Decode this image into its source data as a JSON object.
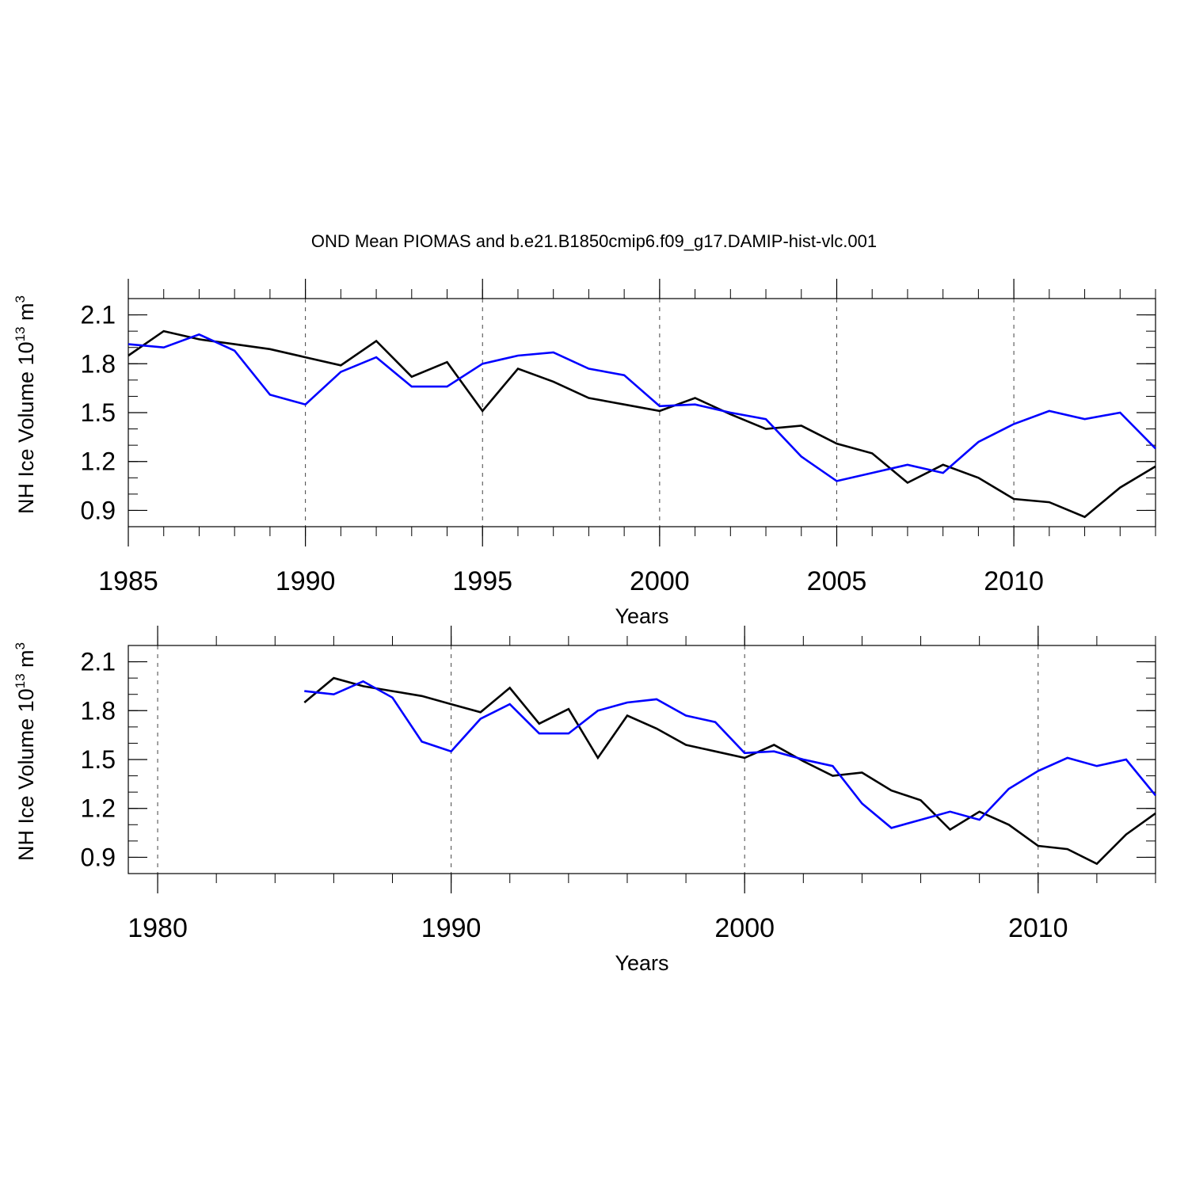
{
  "figure": {
    "title": "OND Mean PIOMAS and b.e21.B1850cmip6.f09_g17.DAMIP-hist-vlc.001"
  },
  "series_styles": {
    "piomas": {
      "name": "PIOMAS",
      "color": "#000000"
    },
    "model": {
      "name": "b.e21.B1850cmip6.f09_g17.DAMIP-hist-vlc.001",
      "color": "#0000ff"
    }
  },
  "chart_data": [
    {
      "type": "line",
      "title": "",
      "xlabel": "Years",
      "ylabel": "NH Ice Volume 10^13 m^3",
      "ylabel_parts": {
        "base": "NH Ice Volume 10",
        "exp1": "13",
        "mid": " m",
        "exp2": "3"
      },
      "xlim": [
        1985,
        2014
      ],
      "ylim": [
        0.8,
        2.2
      ],
      "xticks_major": [
        1985,
        1990,
        1995,
        2000,
        2005,
        2010
      ],
      "xtick_labels": [
        "1985",
        "1990",
        "1995",
        "2000",
        "2005",
        "2010"
      ],
      "xticks_minor_step": 1,
      "yticks_major": [
        0.9,
        1.2,
        1.5,
        1.8,
        2.1
      ],
      "ytick_labels": [
        "0.9",
        "1.2",
        "1.5",
        "1.8",
        "2.1"
      ],
      "yticks_minor_step": 0.1,
      "grid": "vertical dashed at major x ticks",
      "x": [
        1985,
        1986,
        1987,
        1988,
        1989,
        1990,
        1991,
        1992,
        1993,
        1994,
        1995,
        1996,
        1997,
        1998,
        1999,
        2000,
        2001,
        2002,
        2003,
        2004,
        2005,
        2006,
        2007,
        2008,
        2009,
        2010,
        2011,
        2012,
        2013,
        2014
      ],
      "series": [
        {
          "name": "PIOMAS",
          "color": "#000000",
          "values": [
            1.85,
            2.0,
            1.95,
            1.92,
            1.89,
            1.84,
            1.79,
            1.94,
            1.72,
            1.81,
            1.51,
            1.77,
            1.69,
            1.59,
            1.55,
            1.51,
            1.59,
            1.49,
            1.4,
            1.42,
            1.31,
            1.25,
            1.07,
            1.18,
            1.1,
            0.97,
            0.95,
            0.86,
            1.04,
            1.17
          ]
        },
        {
          "name": "b.e21.B1850cmip6.f09_g17.DAMIP-hist-vlc.001",
          "color": "#0000ff",
          "values": [
            1.92,
            1.9,
            1.98,
            1.88,
            1.61,
            1.55,
            1.75,
            1.84,
            1.66,
            1.66,
            1.8,
            1.85,
            1.87,
            1.77,
            1.73,
            1.54,
            1.55,
            1.5,
            1.46,
            1.23,
            1.08,
            1.13,
            1.18,
            1.13,
            1.32,
            1.43,
            1.51,
            1.46,
            1.5,
            1.28
          ]
        }
      ]
    },
    {
      "type": "line",
      "title": "",
      "xlabel": "Years",
      "ylabel": "NH Ice Volume 10^13 m^3",
      "ylabel_parts": {
        "base": "NH Ice Volume 10",
        "exp1": "13",
        "mid": " m",
        "exp2": "3"
      },
      "xlim": [
        1979,
        2014
      ],
      "ylim": [
        0.8,
        2.2
      ],
      "xticks_major": [
        1980,
        1990,
        2000,
        2010
      ],
      "xtick_labels": [
        "1980",
        "1990",
        "2000",
        "2010"
      ],
      "xticks_minor_step": 2,
      "yticks_major": [
        0.9,
        1.2,
        1.5,
        1.8,
        2.1
      ],
      "ytick_labels": [
        "0.9",
        "1.2",
        "1.5",
        "1.8",
        "2.1"
      ],
      "yticks_minor_step": 0.1,
      "grid": "vertical dashed at major x ticks",
      "x": [
        1985,
        1986,
        1987,
        1988,
        1989,
        1990,
        1991,
        1992,
        1993,
        1994,
        1995,
        1996,
        1997,
        1998,
        1999,
        2000,
        2001,
        2002,
        2003,
        2004,
        2005,
        2006,
        2007,
        2008,
        2009,
        2010,
        2011,
        2012,
        2013,
        2014
      ],
      "series": [
        {
          "name": "PIOMAS",
          "color": "#000000",
          "values": [
            1.85,
            2.0,
            1.95,
            1.92,
            1.89,
            1.84,
            1.79,
            1.94,
            1.72,
            1.81,
            1.51,
            1.77,
            1.69,
            1.59,
            1.55,
            1.51,
            1.59,
            1.49,
            1.4,
            1.42,
            1.31,
            1.25,
            1.07,
            1.18,
            1.1,
            0.97,
            0.95,
            0.86,
            1.04,
            1.17
          ]
        },
        {
          "name": "b.e21.B1850cmip6.f09_g17.DAMIP-hist-vlc.001",
          "color": "#0000ff",
          "values": [
            1.92,
            1.9,
            1.98,
            1.88,
            1.61,
            1.55,
            1.75,
            1.84,
            1.66,
            1.66,
            1.8,
            1.85,
            1.87,
            1.77,
            1.73,
            1.54,
            1.55,
            1.5,
            1.46,
            1.23,
            1.08,
            1.13,
            1.18,
            1.13,
            1.32,
            1.43,
            1.51,
            1.46,
            1.5,
            1.28
          ]
        }
      ]
    }
  ]
}
